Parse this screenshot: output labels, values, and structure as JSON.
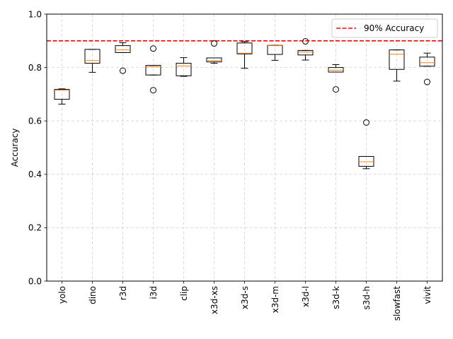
{
  "chart_data": {
    "type": "boxplot",
    "categories": [
      "yolo",
      "dino",
      "r3d",
      "i3d",
      "clip",
      "x3d-xs",
      "x3d-s",
      "x3d-m",
      "x3d-l",
      "s3d-k",
      "s3d-h",
      "slowfast",
      "vivit"
    ],
    "boxes": [
      {
        "whisker_low": 0.663,
        "q1": 0.681,
        "median": 0.715,
        "q3": 0.718,
        "whisker_high": 0.72,
        "outliers": []
      },
      {
        "whisker_low": 0.782,
        "q1": 0.816,
        "median": 0.826,
        "q3": 0.868,
        "whisker_high": 0.868,
        "outliers": []
      },
      {
        "whisker_low": 0.856,
        "q1": 0.856,
        "median": 0.866,
        "q3": 0.882,
        "whisker_high": 0.893,
        "outliers": [
          0.788
        ]
      },
      {
        "whisker_low": 0.772,
        "q1": 0.772,
        "median": 0.803,
        "q3": 0.808,
        "whisker_high": 0.808,
        "outliers": [
          0.715,
          0.871
        ]
      },
      {
        "whisker_low": 0.767,
        "q1": 0.769,
        "median": 0.806,
        "q3": 0.816,
        "whisker_high": 0.837,
        "outliers": []
      },
      {
        "whisker_low": 0.816,
        "q1": 0.821,
        "median": 0.826,
        "q3": 0.836,
        "whisker_high": 0.836,
        "outliers": [
          0.89
        ]
      },
      {
        "whisker_low": 0.797,
        "q1": 0.851,
        "median": 0.854,
        "q3": 0.892,
        "whisker_high": 0.897,
        "outliers": []
      },
      {
        "whisker_low": 0.827,
        "q1": 0.849,
        "median": 0.882,
        "q3": 0.883,
        "whisker_high": 0.883,
        "outliers": []
      },
      {
        "whisker_low": 0.828,
        "q1": 0.847,
        "median": 0.858,
        "q3": 0.864,
        "whisker_high": 0.864,
        "outliers": [
          0.898
        ]
      },
      {
        "whisker_low": 0.783,
        "q1": 0.783,
        "median": 0.79,
        "q3": 0.8,
        "whisker_high": 0.811,
        "outliers": [
          0.718
        ]
      },
      {
        "whisker_low": 0.421,
        "q1": 0.43,
        "median": 0.447,
        "q3": 0.467,
        "whisker_high": 0.467,
        "outliers": [
          0.594
        ]
      },
      {
        "whisker_low": 0.749,
        "q1": 0.793,
        "median": 0.85,
        "q3": 0.866,
        "whisker_high": 0.866,
        "outliers": []
      },
      {
        "whisker_low": 0.805,
        "q1": 0.805,
        "median": 0.818,
        "q3": 0.839,
        "whisker_high": 0.854,
        "outliers": [
          0.746
        ]
      }
    ],
    "reference_line": {
      "y": 0.9,
      "label": "90% Accuracy",
      "color": "#ff0000",
      "style": "dashed"
    },
    "title": "",
    "xlabel": "",
    "ylabel": "Accuracy",
    "ylim": [
      0.0,
      1.0
    ],
    "yticks": [
      "0.0",
      "0.2",
      "0.4",
      "0.6",
      "0.8",
      "1.0"
    ],
    "grid": true,
    "legend_position": "top-right",
    "colors": {
      "box": "#000000",
      "median": "#ff7f0e",
      "grid": "#b0b0b0"
    }
  }
}
